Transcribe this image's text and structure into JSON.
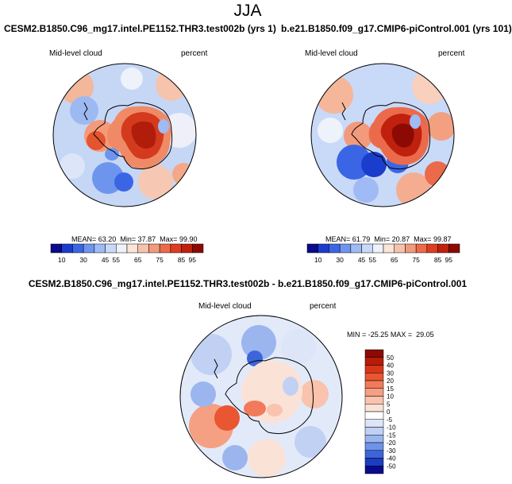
{
  "figure": {
    "season": "JJA"
  },
  "chart_data": [
    {
      "type": "heatmap",
      "projection": "south-polar-stereographic",
      "title": "CESM2.B1850.C96_mg17.intel.PE1152.THR3.test002b (yrs 1)",
      "variable": "Mid-level cloud",
      "units": "percent",
      "stats": {
        "mean_label": "MEAN=",
        "mean": "63.20",
        "min_label": "Min=",
        "min": "37.87",
        "max_label": "Max=",
        "max": "99.90"
      },
      "colorbar": {
        "orientation": "horizontal",
        "levels": [
          "10",
          "30",
          "45",
          "55",
          "65",
          "75",
          "85",
          "95"
        ],
        "colors": [
          "#0a0a8c",
          "#1a3dcc",
          "#3a66e6",
          "#6e95ee",
          "#9fbaf4",
          "#c9d9f8",
          "#eef2fb",
          "#fbe4d8",
          "#f7c2ab",
          "#f29a7c",
          "#ec6a4c",
          "#de3d22",
          "#c0210e",
          "#8c0a03"
        ]
      }
    },
    {
      "type": "heatmap",
      "projection": "south-polar-stereographic",
      "title": "b.e21.B1850.f09_g17.CMIP6-piControl.001 (yrs 101)",
      "variable": "Mid-level cloud",
      "units": "percent",
      "stats": {
        "mean_label": "MEAN=",
        "mean": "61.79",
        "min_label": "Min=",
        "min": "20.87",
        "max_label": "Max=",
        "max": "99.87"
      },
      "colorbar": {
        "orientation": "horizontal",
        "levels": [
          "10",
          "30",
          "45",
          "55",
          "65",
          "75",
          "85",
          "95"
        ],
        "colors": [
          "#0a0a8c",
          "#1a3dcc",
          "#3a66e6",
          "#6e95ee",
          "#9fbaf4",
          "#c9d9f8",
          "#eef2fb",
          "#fbe4d8",
          "#f7c2ab",
          "#f29a7c",
          "#ec6a4c",
          "#de3d22",
          "#c0210e",
          "#8c0a03"
        ]
      }
    },
    {
      "type": "heatmap",
      "projection": "south-polar-stereographic",
      "title": "CESM2.B1850.C96_mg17.intel.PE1152.THR3.test002b - b.e21.B1850.f09_g17.CMIP6-piControl.001",
      "variable": "Mid-level cloud",
      "units": "percent",
      "stats": {
        "min_label": "MIN =",
        "min": "-25.25",
        "max_label": "MAX =",
        "max": "29.05"
      },
      "colorbar": {
        "orientation": "vertical",
        "levels": [
          "50",
          "40",
          "30",
          "20",
          "15",
          "10",
          "5",
          "0",
          "-5",
          "-10",
          "-15",
          "-20",
          "-30",
          "-40",
          "-50"
        ],
        "colors": [
          "#8c0a03",
          "#b81c08",
          "#d93618",
          "#ea5532",
          "#f17a5a",
          "#f59f83",
          "#f9c3ae",
          "#fbe2d7",
          "#ffffff",
          "#dde6f8",
          "#c1d1f4",
          "#9bb5ee",
          "#6e93e8",
          "#3d65d9",
          "#1a3dc2",
          "#0a0a8c"
        ]
      }
    }
  ]
}
